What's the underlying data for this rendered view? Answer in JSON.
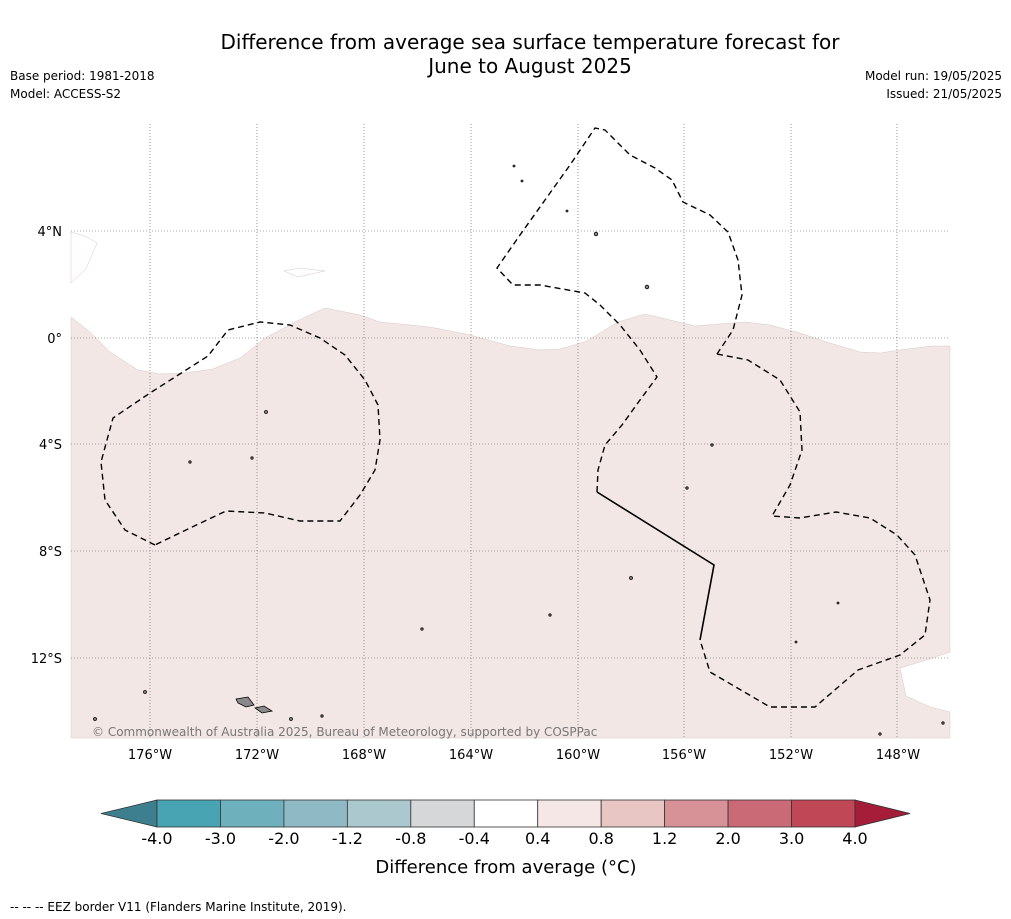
{
  "title": {
    "line1": "Difference from average sea surface temperature forecast for",
    "line2": "June to August 2025"
  },
  "meta": {
    "base_period": "Base period: 1981-2018",
    "model": "Model: ACCESS-S2",
    "model_run": "Model run: 19/05/2025",
    "issued": "Issued: 21/05/2025"
  },
  "map": {
    "lat_labels": [
      "4°N",
      "0°",
      "4°S",
      "8°S",
      "12°S"
    ],
    "lon_labels": [
      "176°W",
      "172°W",
      "168°W",
      "164°W",
      "160°W",
      "156°W",
      "152°W",
      "148°W"
    ],
    "copyright": "© Commonwealth of Australia 2025, Bureau of Meteorology, supported by COSPPac",
    "colors": {
      "anomaly_fill": "#f3e7e6",
      "gridline": "#555555",
      "eez_border": "#000000",
      "land": "#8a8a8a"
    }
  },
  "colorbar": {
    "ticks": [
      "-4.0",
      "-3.0",
      "-2.0",
      "-1.2",
      "-0.8",
      "-0.4",
      "0.4",
      "0.8",
      "1.2",
      "2.0",
      "3.0",
      "4.0"
    ],
    "colors": [
      "#3d7f8e",
      "#48a3b3",
      "#6fb0bd",
      "#8fb9c4",
      "#aac8ce",
      "#d5d7d9",
      "#ffffff",
      "#f5e7e6",
      "#e8c6c3",
      "#d69297",
      "#ca6a76",
      "#c04756",
      "#a51d38"
    ],
    "label": "Difference from average (°C)"
  },
  "footer": "--  --  -- EEZ border V11 (Flanders Marine Institute, 2019)."
}
